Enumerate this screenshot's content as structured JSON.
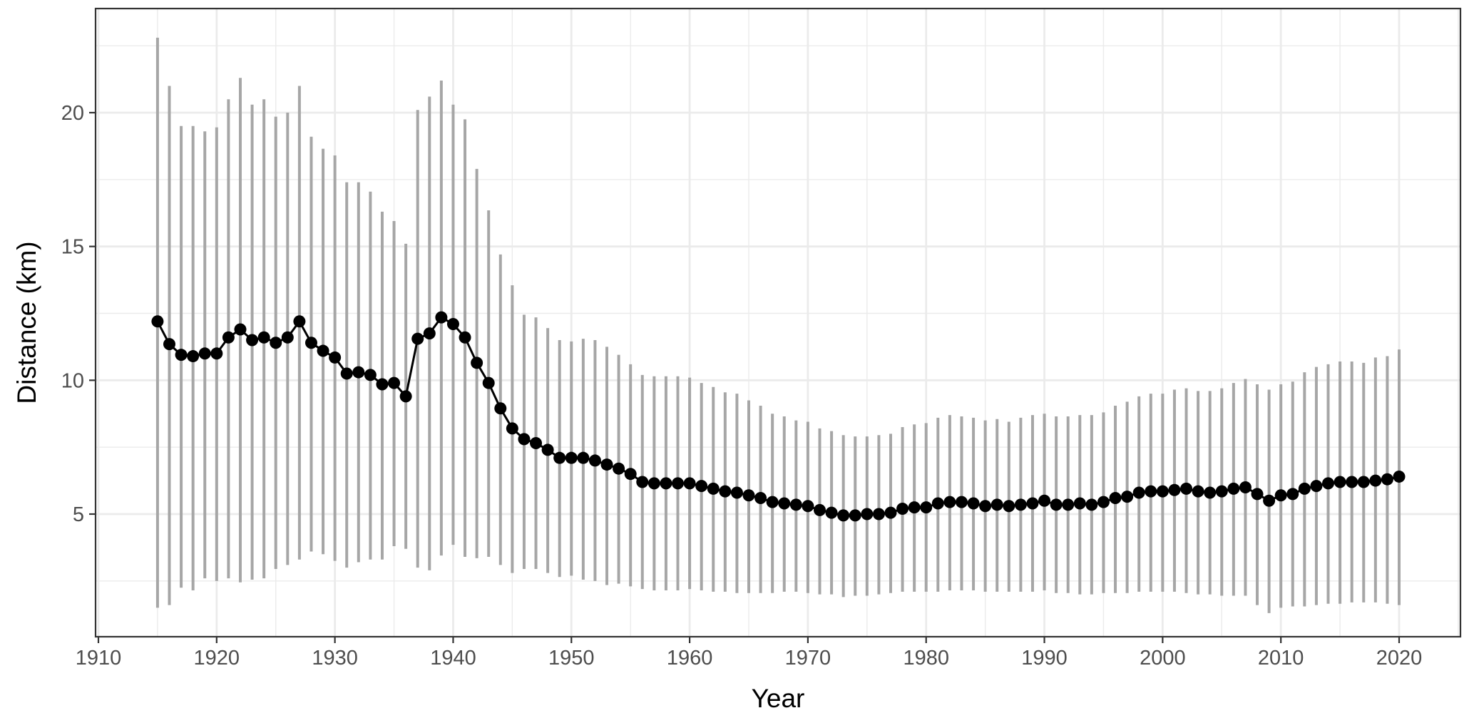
{
  "chart_data": {
    "type": "line",
    "title": "",
    "xlabel": "Year",
    "ylabel": "Distance (km)",
    "xlim": [
      1910,
      2025
    ],
    "ylim": [
      0,
      24
    ],
    "x_ticks": [
      1910,
      1920,
      1930,
      1940,
      1950,
      1960,
      1970,
      1980,
      1990,
      2000,
      2010,
      2020
    ],
    "y_ticks": [
      5,
      10,
      15,
      20
    ],
    "grid": true,
    "legend": "none",
    "colors": {
      "line": "#000000",
      "point": "#000000",
      "errorbar": "#a6a6a6",
      "grid": "#ebebeb",
      "panel_border": "#333333"
    },
    "series": [
      {
        "x": [
          1915,
          1916,
          1917,
          1918,
          1919,
          1920,
          1921,
          1922,
          1923,
          1924,
          1925,
          1926,
          1927,
          1928,
          1929,
          1930,
          1931,
          1932,
          1933,
          1934,
          1935,
          1936,
          1937,
          1938,
          1939,
          1940,
          1941,
          1942,
          1943,
          1944,
          1945,
          1946,
          1947,
          1948,
          1949,
          1950,
          1951,
          1952,
          1953,
          1954,
          1955,
          1956,
          1957,
          1958,
          1959,
          1960,
          1961,
          1962,
          1963,
          1964,
          1965,
          1966,
          1967,
          1968,
          1969,
          1970,
          1971,
          1972,
          1973,
          1974,
          1975,
          1976,
          1977,
          1978,
          1979,
          1980,
          1981,
          1982,
          1983,
          1984,
          1985,
          1986,
          1987,
          1988,
          1989,
          1990,
          1991,
          1992,
          1993,
          1994,
          1995,
          1996,
          1997,
          1998,
          1999,
          2000,
          2001,
          2002,
          2003,
          2004,
          2005,
          2006,
          2007,
          2008,
          2009,
          2010,
          2011,
          2012,
          2013,
          2014,
          2015,
          2016,
          2017,
          2018,
          2019,
          2020
        ],
        "y": [
          12.2,
          11.35,
          10.95,
          10.9,
          11.0,
          11.0,
          11.6,
          11.9,
          11.5,
          11.6,
          11.4,
          11.6,
          12.2,
          11.4,
          11.1,
          10.85,
          10.25,
          10.3,
          10.2,
          9.85,
          9.9,
          9.4,
          11.55,
          11.75,
          12.35,
          12.1,
          11.6,
          10.65,
          9.9,
          8.95,
          8.2,
          7.8,
          7.65,
          7.4,
          7.1,
          7.1,
          7.1,
          7.0,
          6.85,
          6.7,
          6.5,
          6.2,
          6.15,
          6.15,
          6.15,
          6.15,
          6.05,
          5.95,
          5.85,
          5.8,
          5.7,
          5.6,
          5.45,
          5.4,
          5.35,
          5.3,
          5.15,
          5.05,
          4.95,
          4.95,
          5.0,
          5.0,
          5.05,
          5.2,
          5.25,
          5.25,
          5.4,
          5.45,
          5.45,
          5.4,
          5.3,
          5.35,
          5.3,
          5.35,
          5.4,
          5.5,
          5.35,
          5.35,
          5.4,
          5.35,
          5.45,
          5.6,
          5.65,
          5.8,
          5.85,
          5.85,
          5.9,
          5.95,
          5.85,
          5.8,
          5.85,
          5.95,
          6.0,
          5.75,
          5.5,
          5.7,
          5.75,
          5.95,
          6.05,
          6.15,
          6.2,
          6.2,
          6.2,
          6.25,
          6.3,
          6.4
        ],
        "ymin": [
          1.5,
          1.6,
          2.25,
          2.15,
          2.6,
          2.5,
          2.6,
          2.45,
          2.55,
          2.6,
          2.95,
          3.1,
          3.3,
          3.6,
          3.5,
          3.25,
          3.0,
          3.2,
          3.3,
          3.3,
          3.8,
          3.7,
          3.0,
          2.9,
          3.45,
          3.85,
          3.4,
          3.35,
          3.4,
          3.1,
          2.8,
          2.95,
          2.95,
          2.8,
          2.65,
          2.7,
          2.55,
          2.5,
          2.35,
          2.4,
          2.3,
          2.2,
          2.15,
          2.15,
          2.15,
          2.2,
          2.15,
          2.1,
          2.1,
          2.05,
          2.05,
          2.05,
          2.05,
          2.1,
          2.1,
          2.05,
          2.0,
          2.0,
          1.9,
          1.95,
          1.95,
          2.0,
          2.05,
          2.1,
          2.1,
          2.1,
          2.1,
          2.15,
          2.15,
          2.15,
          2.1,
          2.1,
          2.1,
          2.1,
          2.1,
          2.15,
          2.05,
          2.05,
          2.0,
          2.0,
          2.05,
          2.05,
          2.05,
          2.1,
          2.1,
          2.1,
          2.1,
          2.05,
          2.0,
          2.0,
          1.95,
          1.95,
          1.95,
          1.6,
          1.3,
          1.5,
          1.55,
          1.55,
          1.6,
          1.65,
          1.65,
          1.7,
          1.7,
          1.7,
          1.65,
          1.6
        ],
        "ymax": [
          22.8,
          21.0,
          19.5,
          19.5,
          19.3,
          19.45,
          20.5,
          21.3,
          20.3,
          20.5,
          19.85,
          20.0,
          21.0,
          19.1,
          18.65,
          18.4,
          17.4,
          17.4,
          17.05,
          16.3,
          15.95,
          15.1,
          20.1,
          20.6,
          21.2,
          20.3,
          19.75,
          17.9,
          16.35,
          14.7,
          13.55,
          12.45,
          12.35,
          11.95,
          11.5,
          11.45,
          11.55,
          11.5,
          11.25,
          10.95,
          10.6,
          10.2,
          10.15,
          10.15,
          10.15,
          10.1,
          9.9,
          9.75,
          9.55,
          9.5,
          9.25,
          9.05,
          8.75,
          8.65,
          8.5,
          8.45,
          8.2,
          8.1,
          7.95,
          7.9,
          7.9,
          7.95,
          8.0,
          8.25,
          8.35,
          8.4,
          8.6,
          8.7,
          8.65,
          8.6,
          8.5,
          8.55,
          8.45,
          8.6,
          8.7,
          8.75,
          8.65,
          8.65,
          8.7,
          8.7,
          8.8,
          9.05,
          9.2,
          9.4,
          9.5,
          9.5,
          9.65,
          9.7,
          9.6,
          9.6,
          9.7,
          9.9,
          10.05,
          9.85,
          9.65,
          9.85,
          9.95,
          10.3,
          10.5,
          10.6,
          10.7,
          10.7,
          10.65,
          10.85,
          10.9,
          11.15
        ]
      }
    ]
  }
}
